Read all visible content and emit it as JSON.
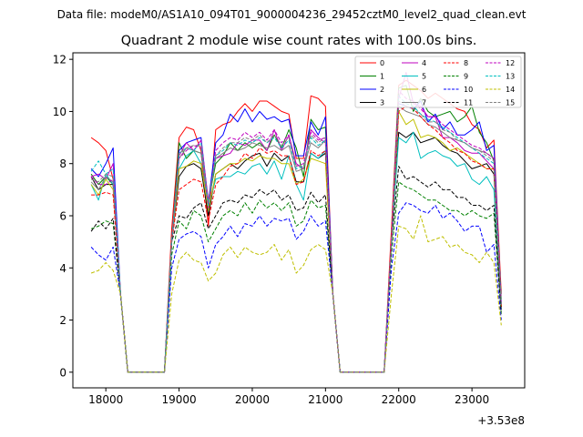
{
  "chart_data": {
    "type": "line",
    "suptitle": "Data file: modeM0/AS1A10_094T01_9000004236_29452cztM0_level2_quad_clean.evt",
    "title": "Quadrant 2 module wise count rates with 100.0s bins.",
    "xlabel": "",
    "ylabel": "",
    "x_offset_label": "+3.53e8",
    "xlim": [
      17550,
      23720
    ],
    "ylim": [
      -0.6,
      12.25
    ],
    "xticks": [
      18000,
      19000,
      20000,
      21000,
      22000,
      23000
    ],
    "xtick_labels": [
      "18000",
      "19000",
      "20000",
      "21000",
      "22000",
      "23000"
    ],
    "yticks": [
      0,
      2,
      4,
      6,
      8,
      10,
      12
    ],
    "ytick_labels": [
      "0",
      "2",
      "4",
      "6",
      "8",
      "10",
      "12"
    ],
    "legend_position": "top-right",
    "x": [
      17800,
      17900,
      18000,
      18100,
      18200,
      18300,
      18400,
      18500,
      18600,
      18700,
      18800,
      18900,
      19000,
      19100,
      19200,
      19300,
      19400,
      19500,
      19600,
      19700,
      19800,
      19900,
      20000,
      20100,
      20200,
      20300,
      20400,
      20500,
      20600,
      20700,
      20800,
      20900,
      21000,
      21100,
      21200,
      21300,
      21400,
      21500,
      21600,
      21700,
      21800,
      21900,
      22000,
      22100,
      22200,
      22300,
      22400,
      22500,
      22600,
      22700,
      22800,
      22900,
      23000,
      23100,
      23200,
      23300,
      23400
    ],
    "series": [
      {
        "name": "0",
        "color": "#ff0000",
        "dash": "solid",
        "values": [
          9.0,
          8.8,
          8.5,
          7.4,
          3.0,
          0.0,
          0.0,
          0.0,
          0.0,
          0.0,
          0.0,
          5.5,
          9.0,
          9.4,
          9.3,
          8.5,
          5.6,
          9.3,
          9.5,
          9.6,
          10.0,
          10.3,
          10.0,
          10.4,
          10.4,
          10.2,
          10.0,
          9.9,
          8.2,
          8.2,
          10.6,
          10.5,
          10.2,
          3.0,
          0.0,
          0.0,
          0.0,
          0.0,
          0.0,
          0.0,
          0.0,
          5.5,
          11.0,
          11.2,
          11.0,
          10.8,
          10.5,
          10.7,
          10.5,
          10.3,
          10.1,
          10.0,
          9.5,
          9.3,
          8.6,
          8.9,
          3.0
        ]
      },
      {
        "name": "1",
        "color": "#008000",
        "dash": "solid",
        "values": [
          7.6,
          7.2,
          7.5,
          7.2,
          3.0,
          0.0,
          0.0,
          0.0,
          0.0,
          0.0,
          0.0,
          5.0,
          8.8,
          8.2,
          8.5,
          8.4,
          6.5,
          8.0,
          8.3,
          8.8,
          8.5,
          8.8,
          8.6,
          8.8,
          8.5,
          9.1,
          8.6,
          9.3,
          8.6,
          7.5,
          9.7,
          9.3,
          9.4,
          3.0,
          0.0,
          0.0,
          0.0,
          0.0,
          0.0,
          0.0,
          0.0,
          5.0,
          10.9,
          11.0,
          10.0,
          10.5,
          10.0,
          9.8,
          9.9,
          10.0,
          9.6,
          9.8,
          10.2,
          9.2,
          8.8,
          8.1,
          2.8
        ]
      },
      {
        "name": "2",
        "color": "#0000ff",
        "dash": "solid",
        "values": [
          7.8,
          7.5,
          8.0,
          8.6,
          3.0,
          0.0,
          0.0,
          0.0,
          0.0,
          0.0,
          0.0,
          5.0,
          8.5,
          8.8,
          8.9,
          9.0,
          6.5,
          8.8,
          9.1,
          9.9,
          9.6,
          10.1,
          9.6,
          10.0,
          9.7,
          9.8,
          9.6,
          9.7,
          8.3,
          8.3,
          9.6,
          9.1,
          9.8,
          3.0,
          0.0,
          0.0,
          0.0,
          0.0,
          0.0,
          0.0,
          0.0,
          5.0,
          10.3,
          10.2,
          10.1,
          10.4,
          9.6,
          9.9,
          9.3,
          9.6,
          9.1,
          9.1,
          9.3,
          9.6,
          8.5,
          8.7,
          2.6
        ]
      },
      {
        "name": "3",
        "color": "#000000",
        "dash": "solid",
        "values": [
          7.5,
          7.0,
          7.2,
          7.2,
          3.0,
          0.0,
          0.0,
          0.0,
          0.0,
          0.0,
          0.0,
          5.0,
          7.5,
          7.9,
          8.0,
          7.8,
          6.0,
          7.6,
          7.8,
          8.0,
          7.8,
          8.1,
          8.3,
          8.4,
          7.9,
          8.4,
          8.1,
          8.3,
          7.3,
          7.3,
          8.4,
          8.2,
          8.4,
          3.0,
          0.0,
          0.0,
          0.0,
          0.0,
          0.0,
          0.0,
          0.0,
          5.0,
          9.2,
          9.0,
          9.2,
          8.8,
          8.9,
          9.0,
          8.7,
          8.5,
          8.4,
          8.1,
          7.8,
          7.9,
          8.0,
          7.6,
          2.5
        ]
      },
      {
        "name": "4",
        "color": "#bf00bf",
        "dash": "solid",
        "values": [
          7.5,
          7.6,
          7.4,
          8.0,
          3.0,
          0.0,
          0.0,
          0.0,
          0.0,
          0.0,
          0.0,
          5.0,
          8.3,
          8.8,
          8.5,
          8.9,
          6.6,
          8.2,
          8.3,
          8.4,
          8.8,
          8.7,
          8.9,
          8.9,
          8.5,
          9.3,
          8.5,
          9.1,
          8.0,
          7.8,
          9.3,
          9.0,
          8.8,
          3.0,
          0.0,
          0.0,
          0.0,
          0.0,
          0.0,
          0.0,
          0.0,
          5.0,
          10.5,
          11.5,
          10.3,
          10.2,
          9.8,
          9.8,
          9.0,
          9.0,
          8.8,
          8.5,
          8.4,
          8.4,
          8.1,
          7.8,
          2.6
        ]
      },
      {
        "name": "5",
        "color": "#00bfbf",
        "dash": "solid",
        "values": [
          7.2,
          6.6,
          7.6,
          7.2,
          3.0,
          0.0,
          0.0,
          0.0,
          0.0,
          0.0,
          0.0,
          5.0,
          7.8,
          8.3,
          8.5,
          8.0,
          6.3,
          7.4,
          7.5,
          7.5,
          7.7,
          7.6,
          7.9,
          8.0,
          7.6,
          8.1,
          7.4,
          8.3,
          7.2,
          6.6,
          8.4,
          8.2,
          8.5,
          3.0,
          0.0,
          0.0,
          0.0,
          0.0,
          0.0,
          0.0,
          0.0,
          5.0,
          9.0,
          8.8,
          9.2,
          8.2,
          8.4,
          8.5,
          8.3,
          8.2,
          7.9,
          8.0,
          7.4,
          7.2,
          7.5,
          7.0,
          2.4
        ]
      },
      {
        "name": "6",
        "color": "#bfbf00",
        "dash": "solid",
        "values": [
          7.2,
          6.8,
          7.4,
          7.0,
          3.0,
          0.0,
          0.0,
          0.0,
          0.0,
          0.0,
          0.0,
          5.0,
          7.8,
          7.9,
          8.1,
          8.0,
          6.2,
          7.6,
          7.8,
          8.0,
          8.0,
          8.2,
          8.1,
          8.3,
          8.2,
          8.2,
          8.0,
          8.0,
          7.2,
          7.4,
          8.2,
          8.1,
          8.0,
          3.0,
          0.0,
          0.0,
          0.0,
          0.0,
          0.0,
          0.0,
          0.0,
          5.0,
          10.0,
          9.5,
          9.7,
          9.0,
          9.1,
          9.0,
          8.8,
          8.5,
          8.6,
          8.4,
          8.2,
          8.0,
          7.8,
          7.8,
          2.5
        ]
      },
      {
        "name": "7",
        "color": "#808080",
        "dash": "solid",
        "values": [
          7.3,
          7.0,
          7.5,
          7.3,
          3.0,
          0.0,
          0.0,
          0.0,
          0.0,
          0.0,
          0.0,
          5.0,
          8.2,
          8.6,
          8.5,
          8.4,
          6.4,
          8.2,
          8.4,
          8.6,
          8.5,
          8.6,
          8.8,
          8.7,
          8.6,
          8.7,
          8.5,
          8.7,
          7.7,
          7.8,
          8.8,
          8.6,
          8.9,
          3.0,
          0.0,
          0.0,
          0.0,
          0.0,
          0.0,
          0.0,
          0.0,
          5.0,
          10.2,
          10.0,
          9.9,
          9.8,
          9.5,
          9.4,
          9.2,
          9.0,
          8.9,
          8.8,
          8.6,
          8.5,
          8.4,
          8.2,
          2.6
        ]
      },
      {
        "name": "8",
        "color": "#ff0000",
        "dash": "dashed",
        "values": [
          6.8,
          6.8,
          6.9,
          6.8,
          3.0,
          0.0,
          0.0,
          0.0,
          0.0,
          0.0,
          0.0,
          5.0,
          7.0,
          7.2,
          7.4,
          7.3,
          5.8,
          7.2,
          7.5,
          7.9,
          8.0,
          8.4,
          8.2,
          8.6,
          8.4,
          8.5,
          8.3,
          8.3,
          7.2,
          7.3,
          8.5,
          8.3,
          8.5,
          3.0,
          0.0,
          0.0,
          0.0,
          0.0,
          0.0,
          0.0,
          0.0,
          5.0,
          10.0,
          10.2,
          10.1,
          9.8,
          9.5,
          9.3,
          9.0,
          8.8,
          8.5,
          8.4,
          8.1,
          8.0,
          7.8,
          7.8,
          2.5
        ]
      },
      {
        "name": "9",
        "color": "#008000",
        "dash": "dashed",
        "values": [
          5.5,
          5.6,
          5.8,
          5.7,
          3.0,
          0.0,
          0.0,
          0.0,
          0.0,
          0.0,
          0.0,
          4.5,
          5.8,
          5.5,
          6.2,
          6.0,
          5.0,
          5.5,
          6.0,
          6.2,
          6.0,
          6.5,
          6.1,
          6.6,
          6.3,
          6.5,
          6.2,
          6.5,
          5.6,
          5.8,
          6.6,
          6.3,
          6.4,
          3.0,
          0.0,
          0.0,
          0.0,
          0.0,
          0.0,
          0.0,
          0.0,
          4.5,
          7.3,
          7.1,
          7.0,
          6.8,
          6.6,
          6.6,
          6.4,
          6.2,
          6.2,
          6.0,
          6.2,
          6.0,
          5.9,
          6.1,
          2.2
        ]
      },
      {
        "name": "10",
        "color": "#0000ff",
        "dash": "dashed",
        "values": [
          4.8,
          4.5,
          4.3,
          4.8,
          3.0,
          0.0,
          0.0,
          0.0,
          0.0,
          0.0,
          0.0,
          4.0,
          5.1,
          5.3,
          5.4,
          5.2,
          4.0,
          4.9,
          5.2,
          5.6,
          5.2,
          5.7,
          5.6,
          6.0,
          5.6,
          5.9,
          5.8,
          5.9,
          5.1,
          5.4,
          6.0,
          5.6,
          5.8,
          3.0,
          0.0,
          0.0,
          0.0,
          0.0,
          0.0,
          0.0,
          0.0,
          4.0,
          6.1,
          6.5,
          6.4,
          6.2,
          6.1,
          6.4,
          5.9,
          6.1,
          5.8,
          5.4,
          5.6,
          5.6,
          4.6,
          4.9,
          2.0
        ]
      },
      {
        "name": "11",
        "color": "#000000",
        "dash": "dashed",
        "values": [
          5.4,
          5.8,
          5.5,
          5.9,
          3.0,
          0.0,
          0.0,
          0.0,
          0.0,
          0.0,
          0.0,
          5.0,
          6.0,
          5.9,
          6.3,
          6.5,
          5.5,
          6.0,
          6.5,
          6.6,
          6.5,
          6.8,
          6.7,
          7.0,
          6.8,
          7.0,
          6.6,
          6.8,
          6.2,
          6.3,
          6.9,
          6.5,
          6.8,
          3.0,
          0.0,
          0.0,
          0.0,
          0.0,
          0.0,
          0.0,
          0.0,
          5.0,
          7.9,
          7.4,
          7.5,
          7.3,
          7.1,
          7.3,
          7.0,
          7.0,
          6.7,
          6.7,
          6.4,
          6.4,
          6.2,
          6.4,
          2.3
        ]
      },
      {
        "name": "12",
        "color": "#bf00bf",
        "dash": "dashed",
        "values": [
          7.5,
          7.2,
          7.2,
          7.4,
          3.0,
          0.0,
          0.0,
          0.0,
          0.0,
          0.0,
          0.0,
          5.0,
          8.2,
          8.5,
          8.7,
          8.6,
          6.3,
          8.5,
          8.8,
          9.0,
          8.9,
          9.2,
          9.0,
          9.2,
          8.9,
          9.3,
          8.8,
          9.1,
          7.9,
          8.0,
          9.2,
          8.9,
          9.0,
          3.0,
          0.0,
          0.0,
          0.0,
          0.0,
          0.0,
          0.0,
          0.0,
          5.0,
          10.8,
          10.5,
          10.4,
          10.1,
          9.8,
          9.8,
          9.5,
          9.3,
          9.1,
          8.9,
          8.7,
          8.6,
          8.4,
          8.2,
          2.6
        ]
      },
      {
        "name": "13",
        "color": "#00bfbf",
        "dash": "dashed",
        "values": [
          7.7,
          8.1,
          7.6,
          7.8,
          3.0,
          0.0,
          0.0,
          0.0,
          0.0,
          0.0,
          0.0,
          5.0,
          8.4,
          8.6,
          8.5,
          8.8,
          6.4,
          8.3,
          8.5,
          8.8,
          8.7,
          8.9,
          8.8,
          9.0,
          8.8,
          9.0,
          8.6,
          8.9,
          7.8,
          7.9,
          9.0,
          8.7,
          8.9,
          3.0,
          0.0,
          0.0,
          0.0,
          0.0,
          0.0,
          0.0,
          0.0,
          5.0,
          10.6,
          10.3,
          10.2,
          9.9,
          9.7,
          9.6,
          9.4,
          9.2,
          9.0,
          8.8,
          8.6,
          8.4,
          8.2,
          8.0,
          2.6
        ]
      },
      {
        "name": "14",
        "color": "#bfbf00",
        "dash": "dashed",
        "values": [
          3.8,
          3.9,
          4.2,
          3.9,
          3.0,
          0.0,
          0.0,
          0.0,
          0.0,
          0.0,
          0.0,
          3.0,
          4.3,
          4.6,
          4.3,
          4.2,
          3.5,
          3.8,
          4.5,
          4.8,
          4.4,
          4.8,
          4.6,
          4.5,
          4.6,
          4.9,
          4.3,
          4.7,
          3.8,
          4.1,
          4.7,
          4.9,
          4.7,
          3.0,
          0.0,
          0.0,
          0.0,
          0.0,
          0.0,
          0.0,
          0.0,
          3.0,
          5.6,
          5.5,
          5.1,
          6.0,
          5.0,
          5.1,
          5.2,
          4.8,
          4.9,
          4.6,
          4.5,
          4.2,
          4.6,
          4.2,
          1.8
        ]
      },
      {
        "name": "15",
        "color": "#808080",
        "dash": "dashed",
        "values": [
          7.4,
          7.3,
          7.6,
          7.5,
          3.0,
          0.0,
          0.0,
          0.0,
          0.0,
          0.0,
          0.0,
          5.0,
          8.4,
          8.6,
          8.7,
          8.7,
          6.5,
          8.3,
          8.6,
          8.8,
          8.8,
          9.0,
          8.9,
          9.1,
          8.8,
          9.1,
          8.7,
          9.0,
          7.9,
          7.9,
          9.1,
          8.8,
          9.0,
          3.0,
          0.0,
          0.0,
          0.0,
          0.0,
          0.0,
          0.0,
          0.0,
          5.0,
          10.4,
          10.2,
          10.1,
          9.9,
          9.6,
          9.6,
          9.3,
          9.2,
          8.9,
          8.8,
          8.6,
          8.5,
          8.3,
          8.1,
          2.6
        ]
      }
    ]
  }
}
